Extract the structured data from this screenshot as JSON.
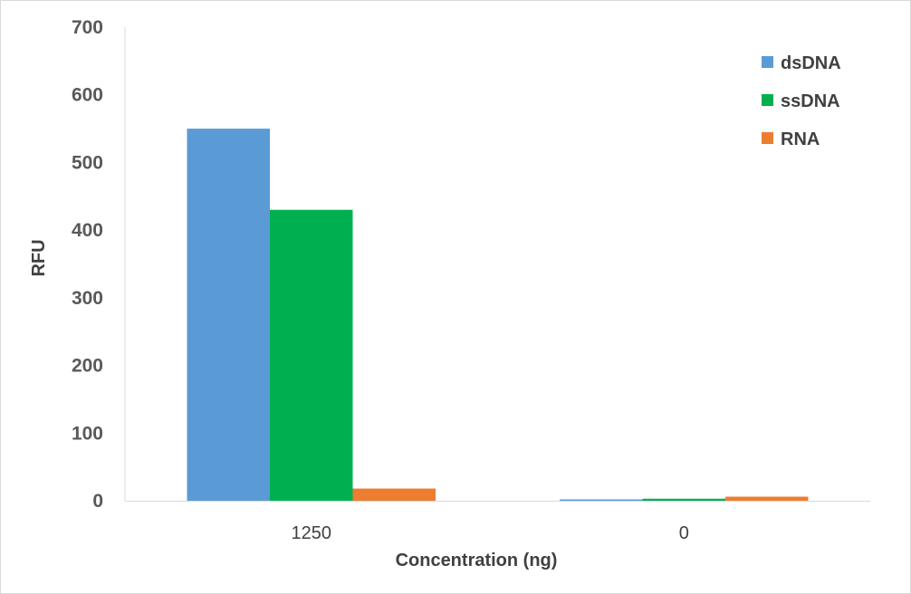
{
  "chart_data": {
    "type": "bar",
    "categories": [
      "1250",
      "0"
    ],
    "series": [
      {
        "name": "dsDNA",
        "values": [
          550,
          2
        ],
        "color": "#5b9bd5"
      },
      {
        "name": "ssDNA",
        "values": [
          430,
          3
        ],
        "color": "#00b050"
      },
      {
        "name": "RNA",
        "values": [
          18,
          6
        ],
        "color": "#ed7d31"
      }
    ],
    "xlabel": "Concentration (ng)",
    "ylabel": "RFU",
    "ylim": [
      0,
      700
    ],
    "yticks": [
      0,
      100,
      200,
      300,
      400,
      500,
      600,
      700
    ],
    "grid": false,
    "legend": "top-right"
  }
}
